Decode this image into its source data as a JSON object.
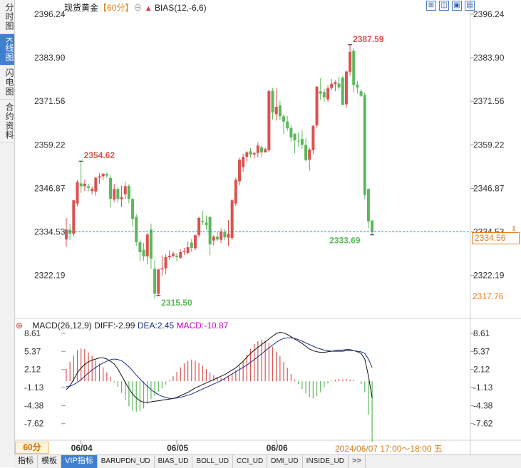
{
  "sidebar": {
    "tabs": [
      {
        "label": "分时图",
        "active": false
      },
      {
        "label": "K线图",
        "active": true
      },
      {
        "label": "闪电图",
        "active": false
      },
      {
        "label": "合约资料",
        "active": false
      }
    ]
  },
  "header": {
    "instrument": "现货黄金",
    "period": "【60分】",
    "circle_icon": "⊕",
    "indicator": "BIAS(12,-6,6)"
  },
  "window_controls": [
    "⊞",
    "◫",
    "▣",
    "▤"
  ],
  "price_panel": {
    "current_price": "2334.56",
    "lowest_visible": "2317.76",
    "ylim": [
      2310.02,
      2396.24
    ]
  },
  "macd": {
    "header": {
      "name": "MACD(26,12,9)",
      "diff": "DIFF:-2.99",
      "dea": "DEA:2.45",
      "macd": "MACD:-10.87"
    },
    "ylim": [
      -10.6,
      8.61
    ]
  },
  "footer": {
    "period_badge": "60分",
    "datetime": "2024/06/07 17:00～18:00 五",
    "tabs": [
      {
        "label": "指标",
        "active": false
      },
      {
        "label": "模板",
        "active": false
      },
      {
        "label": "VIP指标",
        "active": true
      },
      {
        "label": "BARUPDN_UD",
        "active": false
      },
      {
        "label": "BIAS_UD",
        "active": false
      },
      {
        "label": "BOLL_UD",
        "active": false
      },
      {
        "label": "CCI_UD",
        "active": false
      },
      {
        "label": "DMI_UD",
        "active": false
      },
      {
        "label": "INSIDE_UD",
        "active": false
      },
      {
        "label": ">>",
        "active": false
      }
    ]
  },
  "colors": {
    "up": "#d9534f",
    "down": "#5cb85c",
    "diff_line": "#111111",
    "dea_line": "#1a2f8a",
    "accent": "#e08020",
    "macd_label": "#d000d0",
    "dea_label": "#1a2f8a"
  },
  "chart_data": [
    {
      "type": "candlestick",
      "title": "现货黄金",
      "y_ticks": [
        "2396.24",
        "2383.90",
        "2371.56",
        "2359.22",
        "2346.87",
        "2334.53",
        "2322.19"
      ],
      "x_ticks": [
        "06/04",
        "06/05",
        "06/06"
      ],
      "ylim": [
        2310.02,
        2396.24
      ],
      "annotations": [
        {
          "text": "2354.62",
          "kind": "high",
          "bar_index": 4
        },
        {
          "text": "2315.50",
          "kind": "low",
          "bar_index": 25
        },
        {
          "text": "2387.59",
          "kind": "high",
          "bar_index": 77
        },
        {
          "text": "2333.69",
          "kind": "low",
          "bar_index": 83
        }
      ],
      "reference_line": 2334.56,
      "candles": [
        [
          2332.4,
          2338.5,
          2330.3,
          2335.2
        ],
        [
          2335.2,
          2336.8,
          2332.2,
          2334.0
        ],
        [
          2334.0,
          2343.6,
          2333.3,
          2343.5
        ],
        [
          2342.6,
          2349.2,
          2341.8,
          2348.7
        ],
        [
          2348.3,
          2354.6,
          2345.6,
          2347.5
        ],
        [
          2347.5,
          2349.3,
          2346.1,
          2348.2
        ],
        [
          2347.5,
          2348.2,
          2346.0,
          2347.0
        ],
        [
          2346.1,
          2347.4,
          2345.2,
          2346.8
        ],
        [
          2346.0,
          2350.2,
          2344.8,
          2349.9
        ],
        [
          2349.9,
          2351.2,
          2348.2,
          2350.3
        ],
        [
          2350.3,
          2351.3,
          2349.2,
          2351.0
        ],
        [
          2351.0,
          2351.5,
          2349.8,
          2350.5
        ],
        [
          2349.8,
          2350.7,
          2341.5,
          2343.9
        ],
        [
          2343.7,
          2348.2,
          2343.0,
          2346.7
        ],
        [
          2346.7,
          2347.2,
          2342.9,
          2343.9
        ],
        [
          2343.8,
          2347.7,
          2341.6,
          2344.4
        ],
        [
          2345.2,
          2348.7,
          2343.9,
          2347.5
        ],
        [
          2347.6,
          2348.1,
          2342.6,
          2343.9
        ],
        [
          2343.9,
          2344.2,
          2336.1,
          2338.2
        ],
        [
          2338.8,
          2339.6,
          2330.6,
          2331.6
        ],
        [
          2331.6,
          2332.4,
          2326.3,
          2328.8
        ],
        [
          2329.5,
          2331.4,
          2326.4,
          2327.6
        ],
        [
          2327.6,
          2334.2,
          2325.3,
          2333.8
        ],
        [
          2335.2,
          2336.9,
          2324.0,
          2327.0
        ],
        [
          2324.1,
          2326.5,
          2315.5,
          2317.0
        ],
        [
          2317.0,
          2324.1,
          2316.5,
          2323.9
        ],
        [
          2323.9,
          2327.9,
          2322.1,
          2324.2
        ],
        [
          2324.2,
          2328.2,
          2322.5,
          2327.4
        ],
        [
          2327.4,
          2329.3,
          2326.6,
          2327.8
        ],
        [
          2327.8,
          2329.0,
          2327.2,
          2328.4
        ],
        [
          2327.8,
          2328.5,
          2326.2,
          2327.4
        ],
        [
          2327.2,
          2329.6,
          2326.9,
          2328.8
        ],
        [
          2328.8,
          2330.0,
          2328.0,
          2329.1
        ],
        [
          2328.6,
          2331.8,
          2328.2,
          2330.2
        ],
        [
          2331.5,
          2332.5,
          2328.9,
          2330.0
        ],
        [
          2329.9,
          2333.8,
          2329.3,
          2333.6
        ],
        [
          2333.6,
          2338.9,
          2333.0,
          2338.5
        ],
        [
          2337.7,
          2340.6,
          2336.5,
          2337.4
        ],
        [
          2337.2,
          2339.2,
          2335.1,
          2336.5
        ],
        [
          2338.8,
          2338.9,
          2327.9,
          2331.0
        ],
        [
          2332.1,
          2333.6,
          2330.7,
          2333.2
        ],
        [
          2333.2,
          2334.5,
          2331.9,
          2332.4
        ],
        [
          2332.3,
          2335.6,
          2331.4,
          2334.6
        ],
        [
          2334.5,
          2335.3,
          2332.2,
          2333.0
        ],
        [
          2332.9,
          2337.9,
          2330.5,
          2334.0
        ],
        [
          2332.8,
          2343.9,
          2332.2,
          2343.5
        ],
        [
          2342.6,
          2349.9,
          2341.9,
          2349.3
        ],
        [
          2348.9,
          2355.6,
          2347.7,
          2355.0
        ],
        [
          2352.9,
          2356.7,
          2351.6,
          2355.8
        ],
        [
          2355.8,
          2357.5,
          2354.4,
          2357.1
        ],
        [
          2357.4,
          2358.3,
          2355.6,
          2356.5
        ],
        [
          2356.5,
          2357.2,
          2355.3,
          2356.9
        ],
        [
          2356.9,
          2359.9,
          2355.6,
          2359.0
        ],
        [
          2358.5,
          2359.0,
          2355.7,
          2357.1
        ],
        [
          2357.1,
          2358.4,
          2357.0,
          2358.0
        ],
        [
          2357.7,
          2374.7,
          2357.1,
          2374.5
        ],
        [
          2374.5,
          2375.3,
          2366.4,
          2368.4
        ],
        [
          2367.9,
          2375.2,
          2366.1,
          2370.0
        ],
        [
          2370.4,
          2371.7,
          2366.3,
          2367.3
        ],
        [
          2367.3,
          2367.9,
          2362.3,
          2365.8
        ],
        [
          2365.8,
          2367.4,
          2363.2,
          2363.9
        ],
        [
          2364.0,
          2364.8,
          2360.1,
          2361.3
        ],
        [
          2362.4,
          2362.5,
          2356.8,
          2360.5
        ],
        [
          2360.4,
          2362.6,
          2358.7,
          2360.3
        ],
        [
          2360.9,
          2363.4,
          2358.1,
          2359.2
        ],
        [
          2359.2,
          2361.1,
          2354.6,
          2354.9
        ],
        [
          2355.0,
          2358.4,
          2351.9,
          2357.9
        ],
        [
          2357.7,
          2364.8,
          2356.5,
          2364.6
        ],
        [
          2364.7,
          2375.9,
          2364.1,
          2375.7
        ],
        [
          2374.4,
          2378.2,
          2371.9,
          2373.7
        ],
        [
          2374.2,
          2375.1,
          2371.4,
          2372.7
        ],
        [
          2372.1,
          2376.1,
          2371.4,
          2375.3
        ],
        [
          2375.3,
          2377.9,
          2374.8,
          2376.5
        ],
        [
          2376.4,
          2377.5,
          2374.4,
          2377.0
        ],
        [
          2376.6,
          2378.5,
          2374.9,
          2375.5
        ],
        [
          2378.3,
          2378.8,
          2370.4,
          2370.6
        ],
        [
          2370.7,
          2380.3,
          2369.6,
          2380.0
        ],
        [
          2379.9,
          2387.6,
          2378.8,
          2385.6
        ],
        [
          2385.9,
          2386.7,
          2374.1,
          2376.2
        ],
        [
          2376.3,
          2377.3,
          2373.8,
          2375.5
        ],
        [
          2374.4,
          2375.0,
          2372.8,
          2373.1
        ],
        [
          2373.4,
          2374.1,
          2343.8,
          2345.0
        ],
        [
          2346.7,
          2346.9,
          2335.6,
          2337.5
        ],
        [
          2337.8,
          2337.8,
          2333.7,
          2334.5
        ]
      ]
    },
    {
      "type": "bar+line",
      "title": "MACD(26,12,9)",
      "y_ticks": [
        "8.61",
        "5.37",
        "2.12",
        "-1.13",
        "-4.38",
        "-7.62"
      ],
      "ylim": [
        -10.6,
        8.61
      ],
      "series": [
        {
          "name": "DIFF",
          "values": [
            -1.5,
            -0.8,
            0.3,
            1.5,
            2.4,
            3.0,
            3.5,
            3.8,
            4.0,
            4.2,
            4.2,
            4.0,
            3.6,
            3.1,
            2.2,
            1.0,
            -0.2,
            -1.3,
            -2.3,
            -3.0,
            -3.5,
            -3.8,
            -3.8,
            -3.7,
            -3.6,
            -3.5,
            -3.4,
            -3.3,
            -3.2,
            -3.1,
            -2.9,
            -2.6,
            -2.3,
            -2.0,
            -1.6,
            -1.2,
            -0.9,
            -0.6,
            -0.3,
            0.0,
            0.3,
            0.6,
            0.9,
            1.2,
            1.6,
            2.0,
            2.4,
            3.0,
            3.6,
            4.3,
            5.0,
            5.6,
            6.1,
            6.6,
            7.1,
            7.6,
            8.1,
            8.6,
            8.8,
            8.7,
            8.4,
            8.0,
            7.6,
            7.2,
            6.8,
            6.3,
            5.8,
            5.5,
            5.3,
            5.2,
            5.2,
            5.3,
            5.4,
            5.5,
            5.6,
            5.6,
            5.7,
            5.7,
            5.5,
            5.3,
            5.0,
            4.0,
            1.0,
            -2.99
          ]
        },
        {
          "name": "DEA",
          "values": [
            -1.0,
            -0.9,
            -0.6,
            -0.2,
            0.3,
            0.9,
            1.5,
            2.0,
            2.5,
            2.9,
            3.3,
            3.6,
            3.9,
            4.0,
            3.9,
            3.7,
            3.2,
            2.6,
            1.9,
            1.1,
            0.4,
            -0.3,
            -0.9,
            -1.5,
            -2.0,
            -2.4,
            -2.7,
            -2.9,
            -3.1,
            -3.1,
            -3.0,
            -2.9,
            -2.7,
            -2.5,
            -2.3,
            -2.0,
            -1.7,
            -1.4,
            -1.1,
            -0.8,
            -0.5,
            -0.2,
            0.1,
            0.5,
            0.9,
            1.3,
            1.7,
            2.1,
            2.5,
            2.9,
            3.4,
            3.9,
            4.4,
            4.9,
            5.5,
            6.0,
            6.5,
            7.0,
            7.4,
            7.7,
            7.8,
            7.8,
            7.7,
            7.5,
            7.2,
            6.9,
            6.6,
            6.3,
            6.0,
            5.8,
            5.6,
            5.5,
            5.4,
            5.4,
            5.4,
            5.4,
            5.5,
            5.5,
            5.5,
            5.4,
            5.3,
            5.0,
            4.0,
            2.45
          ]
        },
        {
          "name": "MACD",
          "values": [
            2.2,
            3.5,
            4.6,
            5.6,
            5.9,
            5.8,
            5.2,
            4.6,
            3.8,
            3.2,
            2.5,
            1.6,
            0.8,
            -0.2,
            -1.0,
            -2.1,
            -3.4,
            -4.5,
            -5.3,
            -5.5,
            -5.4,
            -4.9,
            -4.0,
            -3.2,
            -2.6,
            -1.9,
            -1.3,
            -0.6,
            0.2,
            0.9,
            1.7,
            2.5,
            3.2,
            3.7,
            3.9,
            3.7,
            3.3,
            2.8,
            2.2,
            1.6,
            1.1,
            0.8,
            0.6,
            0.6,
            0.9,
            1.4,
            2.0,
            2.8,
            3.7,
            4.8,
            5.8,
            6.7,
            7.2,
            7.4,
            7.3,
            6.9,
            6.2,
            5.3,
            4.5,
            3.5,
            2.4,
            1.3,
            0.3,
            -0.5,
            -1.4,
            -2.2,
            -2.9,
            -3.1,
            -2.7,
            -2.0,
            -1.1,
            -0.4,
            0.1,
            0.3,
            0.4,
            0.3,
            0.4,
            0.3,
            0.2,
            0.0,
            -0.5,
            -2.0,
            -6.0,
            -10.87
          ]
        }
      ]
    }
  ]
}
